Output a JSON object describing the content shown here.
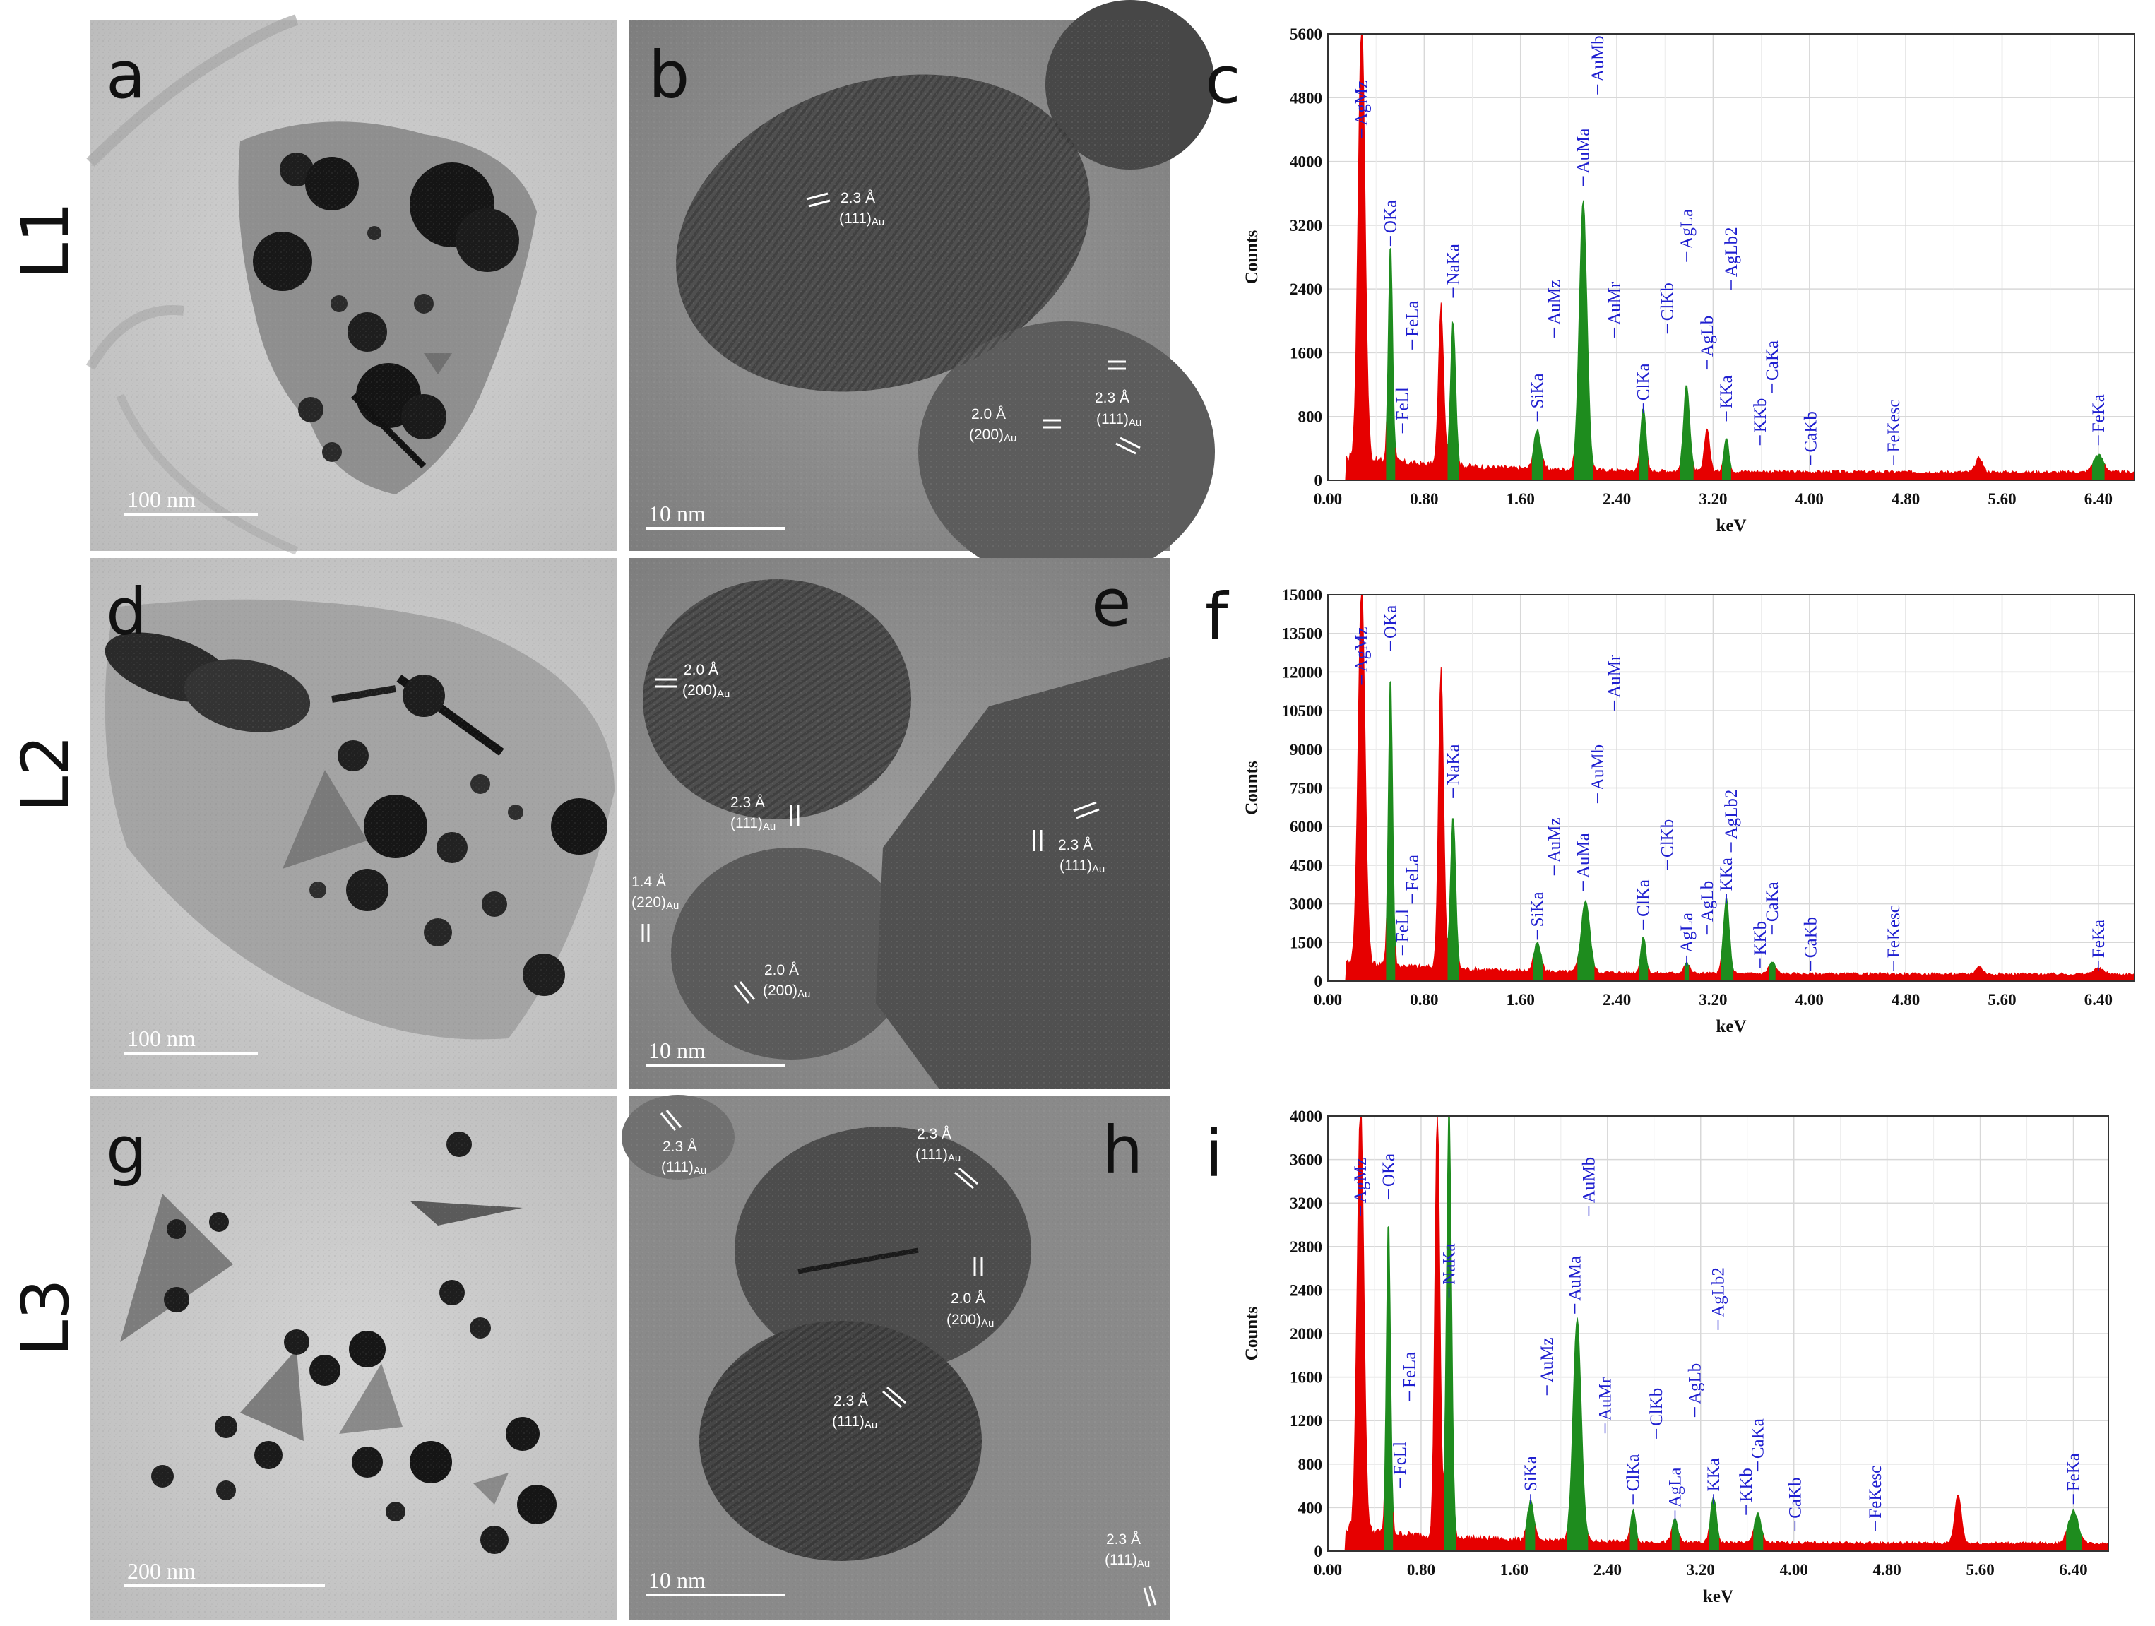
{
  "row_labels": [
    "L1",
    "L2",
    "L3"
  ],
  "panels": {
    "tem": [
      {
        "letter": "a",
        "scale": "100 nm"
      },
      {
        "letter": "d",
        "scale": "100 nm"
      },
      {
        "letter": "g",
        "scale": "200 nm"
      }
    ],
    "hrtem": [
      {
        "letter": "b",
        "scale": "10 nm",
        "annotations": [
          {
            "d": "2.3 Å",
            "plane": "(111)",
            "sub": "Au"
          },
          {
            "d": "2.0 Å",
            "plane": "(200)",
            "sub": "Au"
          },
          {
            "d": "2.3 Å",
            "plane": "(111)",
            "sub": "Au"
          }
        ]
      },
      {
        "letter": "e",
        "scale": "10 nm",
        "annotations": [
          {
            "d": "2.0 Å",
            "plane": "(200)",
            "sub": "Au"
          },
          {
            "d": "2.3 Å",
            "plane": "(111)",
            "sub": "Au"
          },
          {
            "d": "2.3 Å",
            "plane": "(111)",
            "sub": "Au"
          },
          {
            "d": "1.4 Å",
            "plane": "(220)",
            "sub": "Au"
          },
          {
            "d": "2.0 Å",
            "plane": "(200)",
            "sub": "Au"
          }
        ]
      },
      {
        "letter": "h",
        "scale": "10 nm",
        "annotations": [
          {
            "d": "2.3 Å",
            "plane": "(111)",
            "sub": "Au"
          },
          {
            "d": "2.3 Å",
            "plane": "(111)",
            "sub": "Au"
          },
          {
            "d": "2.0 Å",
            "plane": "(200)",
            "sub": "Au"
          },
          {
            "d": "2.3 Å",
            "plane": "(111)",
            "sub": "Au"
          },
          {
            "d": "2.3 Å",
            "plane": "(111)",
            "sub": "Au"
          }
        ]
      }
    ]
  },
  "colors": {
    "red": "#e60000",
    "green": "#1e8c1e",
    "blue": "#1f1fd0"
  },
  "chart_data": [
    {
      "type": "area",
      "letter": "c",
      "xlabel": "keV",
      "ylabel": "Counts",
      "xlim": [
        0,
        6.7
      ],
      "ylim": [
        0,
        5600
      ],
      "xticks": [
        "0.00",
        "0.80",
        "1.60",
        "2.40",
        "3.20",
        "4.00",
        "4.80",
        "5.60",
        "6.40"
      ],
      "yticks": [
        "0",
        "800",
        "1600",
        "2400",
        "3200",
        "4000",
        "4800",
        "5600"
      ],
      "peaks": [
        {
          "x": 0.28,
          "y": 5600,
          "w": 0.04,
          "c": "red"
        },
        {
          "x": 0.52,
          "y": 2800,
          "w": 0.025,
          "c": "green"
        },
        {
          "x": 0.94,
          "y": 2000,
          "w": 0.03,
          "c": "red"
        },
        {
          "x": 1.04,
          "y": 1850,
          "w": 0.03,
          "c": "green"
        },
        {
          "x": 1.74,
          "y": 500,
          "w": 0.04,
          "c": "green"
        },
        {
          "x": 2.12,
          "y": 3400,
          "w": 0.045,
          "c": "green"
        },
        {
          "x": 2.62,
          "y": 820,
          "w": 0.03,
          "c": "green"
        },
        {
          "x": 2.98,
          "y": 1100,
          "w": 0.035,
          "c": "green"
        },
        {
          "x": 3.15,
          "y": 550,
          "w": 0.03,
          "c": "red"
        },
        {
          "x": 3.31,
          "y": 420,
          "w": 0.03,
          "c": "green"
        },
        {
          "x": 5.41,
          "y": 180,
          "w": 0.04,
          "c": "red"
        },
        {
          "x": 6.4,
          "y": 220,
          "w": 0.06,
          "c": "green"
        }
      ],
      "elements": [
        {
          "label": "AgMz",
          "x": 0.28,
          "y": 4450
        },
        {
          "label": "OKa",
          "x": 0.52,
          "y": 3100
        },
        {
          "label": "FeLa",
          "x": 0.7,
          "y": 1800
        },
        {
          "label": "FeLl",
          "x": 0.62,
          "y": 750
        },
        {
          "label": "NaKa",
          "x": 1.04,
          "y": 2450
        },
        {
          "label": "SiKa",
          "x": 1.74,
          "y": 900
        },
        {
          "label": "AuMz",
          "x": 1.88,
          "y": 1950
        },
        {
          "label": "AuMa",
          "x": 2.12,
          "y": 3850
        },
        {
          "label": "AuMb",
          "x": 2.24,
          "y": 5000
        },
        {
          "label": "AuMr",
          "x": 2.38,
          "y": 1950
        },
        {
          "label": "ClKa",
          "x": 2.62,
          "y": 1000
        },
        {
          "label": "ClKb",
          "x": 2.82,
          "y": 2000
        },
        {
          "label": "AgLa",
          "x": 2.98,
          "y": 2900
        },
        {
          "label": "AgLb",
          "x": 3.15,
          "y": 1550
        },
        {
          "label": "AgLb2",
          "x": 3.35,
          "y": 2550
        },
        {
          "label": "KKa",
          "x": 3.31,
          "y": 900
        },
        {
          "label": "KKb",
          "x": 3.59,
          "y": 600
        },
        {
          "label": "CaKa",
          "x": 3.69,
          "y": 1250
        },
        {
          "label": "CaKb",
          "x": 4.01,
          "y": 350
        },
        {
          "label": "FeKesc",
          "x": 4.7,
          "y": 350
        },
        {
          "label": "FeKa",
          "x": 6.4,
          "y": 600
        }
      ]
    },
    {
      "type": "area",
      "letter": "f",
      "xlabel": "keV",
      "ylabel": "Counts",
      "xlim": [
        0,
        6.7
      ],
      "ylim": [
        0,
        15000
      ],
      "xticks": [
        "0.00",
        "0.80",
        "1.60",
        "2.40",
        "3.20",
        "4.00",
        "4.80",
        "5.60",
        "6.40"
      ],
      "yticks": [
        "0",
        "1500",
        "3000",
        "4500",
        "6000",
        "7500",
        "9000",
        "10500",
        "12000",
        "13500",
        "15000"
      ],
      "peaks": [
        {
          "x": 0.28,
          "y": 15000,
          "w": 0.04,
          "c": "red"
        },
        {
          "x": 0.52,
          "y": 11400,
          "w": 0.025,
          "c": "green"
        },
        {
          "x": 0.94,
          "y": 11700,
          "w": 0.03,
          "c": "red"
        },
        {
          "x": 1.04,
          "y": 6000,
          "w": 0.03,
          "c": "green"
        },
        {
          "x": 1.74,
          "y": 1100,
          "w": 0.04,
          "c": "green"
        },
        {
          "x": 2.14,
          "y": 2800,
          "w": 0.05,
          "c": "green"
        },
        {
          "x": 2.62,
          "y": 1400,
          "w": 0.03,
          "c": "green"
        },
        {
          "x": 2.98,
          "y": 400,
          "w": 0.035,
          "c": "green"
        },
        {
          "x": 3.31,
          "y": 2900,
          "w": 0.035,
          "c": "green"
        },
        {
          "x": 3.69,
          "y": 450,
          "w": 0.04,
          "c": "green"
        },
        {
          "x": 5.41,
          "y": 300,
          "w": 0.04,
          "c": "red"
        },
        {
          "x": 6.4,
          "y": 220,
          "w": 0.06,
          "c": "green"
        }
      ],
      "elements": [
        {
          "label": "AgMz",
          "x": 0.28,
          "y": 12000
        },
        {
          "label": "OKa",
          "x": 0.52,
          "y": 13300
        },
        {
          "label": "FeLa",
          "x": 0.7,
          "y": 3500
        },
        {
          "label": "FeLl",
          "x": 0.62,
          "y": 1500
        },
        {
          "label": "NaKa",
          "x": 1.04,
          "y": 7600
        },
        {
          "label": "SiKa",
          "x": 1.74,
          "y": 2100
        },
        {
          "label": "AuMz",
          "x": 1.88,
          "y": 4600
        },
        {
          "label": "AuMa",
          "x": 2.12,
          "y": 4000
        },
        {
          "label": "AuMb",
          "x": 2.24,
          "y": 7400
        },
        {
          "label": "AuMr",
          "x": 2.38,
          "y": 11000
        },
        {
          "label": "ClKa",
          "x": 2.62,
          "y": 2500
        },
        {
          "label": "ClKb",
          "x": 2.82,
          "y": 4800
        },
        {
          "label": "AgLa",
          "x": 2.98,
          "y": 1100
        },
        {
          "label": "AgLb",
          "x": 3.15,
          "y": 2300
        },
        {
          "label": "AgLb2",
          "x": 3.35,
          "y": 5500
        },
        {
          "label": "KKa",
          "x": 3.31,
          "y": 3500
        },
        {
          "label": "KKb",
          "x": 3.59,
          "y": 1000
        },
        {
          "label": "CaKa",
          "x": 3.69,
          "y": 2300
        },
        {
          "label": "CaKb",
          "x": 4.01,
          "y": 900
        },
        {
          "label": "FeKesc",
          "x": 4.7,
          "y": 900
        },
        {
          "label": "FeKa",
          "x": 6.4,
          "y": 900
        }
      ]
    },
    {
      "type": "area",
      "letter": "i",
      "xlabel": "keV",
      "ylabel": "Counts",
      "xlim": [
        0,
        6.7
      ],
      "ylim": [
        0,
        4000
      ],
      "xticks": [
        "0.00",
        "0.80",
        "1.60",
        "2.40",
        "3.20",
        "4.00",
        "4.80",
        "5.60",
        "6.40"
      ],
      "yticks": [
        "0",
        "400",
        "800",
        "1200",
        "1600",
        "2000",
        "2400",
        "2800",
        "3200",
        "3600",
        "4000"
      ],
      "peaks": [
        {
          "x": 0.28,
          "y": 4000,
          "w": 0.04,
          "c": "red"
        },
        {
          "x": 0.52,
          "y": 2900,
          "w": 0.025,
          "c": "green"
        },
        {
          "x": 0.94,
          "y": 4000,
          "w": 0.03,
          "c": "red"
        },
        {
          "x": 1.04,
          "y": 4000,
          "w": 0.03,
          "c": "green"
        },
        {
          "x": 1.74,
          "y": 350,
          "w": 0.04,
          "c": "green"
        },
        {
          "x": 2.14,
          "y": 2050,
          "w": 0.05,
          "c": "green"
        },
        {
          "x": 2.62,
          "y": 300,
          "w": 0.03,
          "c": "green"
        },
        {
          "x": 2.98,
          "y": 220,
          "w": 0.035,
          "c": "green"
        },
        {
          "x": 3.31,
          "y": 420,
          "w": 0.035,
          "c": "green"
        },
        {
          "x": 3.69,
          "y": 280,
          "w": 0.04,
          "c": "green"
        },
        {
          "x": 5.41,
          "y": 450,
          "w": 0.04,
          "c": "red"
        },
        {
          "x": 6.4,
          "y": 300,
          "w": 0.06,
          "c": "green"
        }
      ],
      "elements": [
        {
          "label": "AgMz",
          "x": 0.28,
          "y": 3200
        },
        {
          "label": "OKa",
          "x": 0.52,
          "y": 3350
        },
        {
          "label": "FeLa",
          "x": 0.7,
          "y": 1500
        },
        {
          "label": "FeLl",
          "x": 0.62,
          "y": 700
        },
        {
          "label": "NaKa",
          "x": 1.04,
          "y": 2450
        },
        {
          "label": "SiKa",
          "x": 1.74,
          "y": 550
        },
        {
          "label": "AuMz",
          "x": 1.88,
          "y": 1550
        },
        {
          "label": "AuMa",
          "x": 2.12,
          "y": 2300
        },
        {
          "label": "AuMb",
          "x": 2.24,
          "y": 3200
        },
        {
          "label": "AuMr",
          "x": 2.38,
          "y": 1200
        },
        {
          "label": "ClKa",
          "x": 2.62,
          "y": 550
        },
        {
          "label": "ClKb",
          "x": 2.82,
          "y": 1150
        },
        {
          "label": "AgLa",
          "x": 2.98,
          "y": 400
        },
        {
          "label": "AgLb",
          "x": 3.15,
          "y": 1350
        },
        {
          "label": "AgLb2",
          "x": 3.35,
          "y": 2150
        },
        {
          "label": "KKa",
          "x": 3.31,
          "y": 550
        },
        {
          "label": "KKb",
          "x": 3.59,
          "y": 450
        },
        {
          "label": "CaKa",
          "x": 3.69,
          "y": 850
        },
        {
          "label": "CaKb",
          "x": 4.01,
          "y": 300
        },
        {
          "label": "FeKesc",
          "x": 4.7,
          "y": 300
        },
        {
          "label": "FeKa",
          "x": 6.4,
          "y": 550
        }
      ]
    }
  ]
}
